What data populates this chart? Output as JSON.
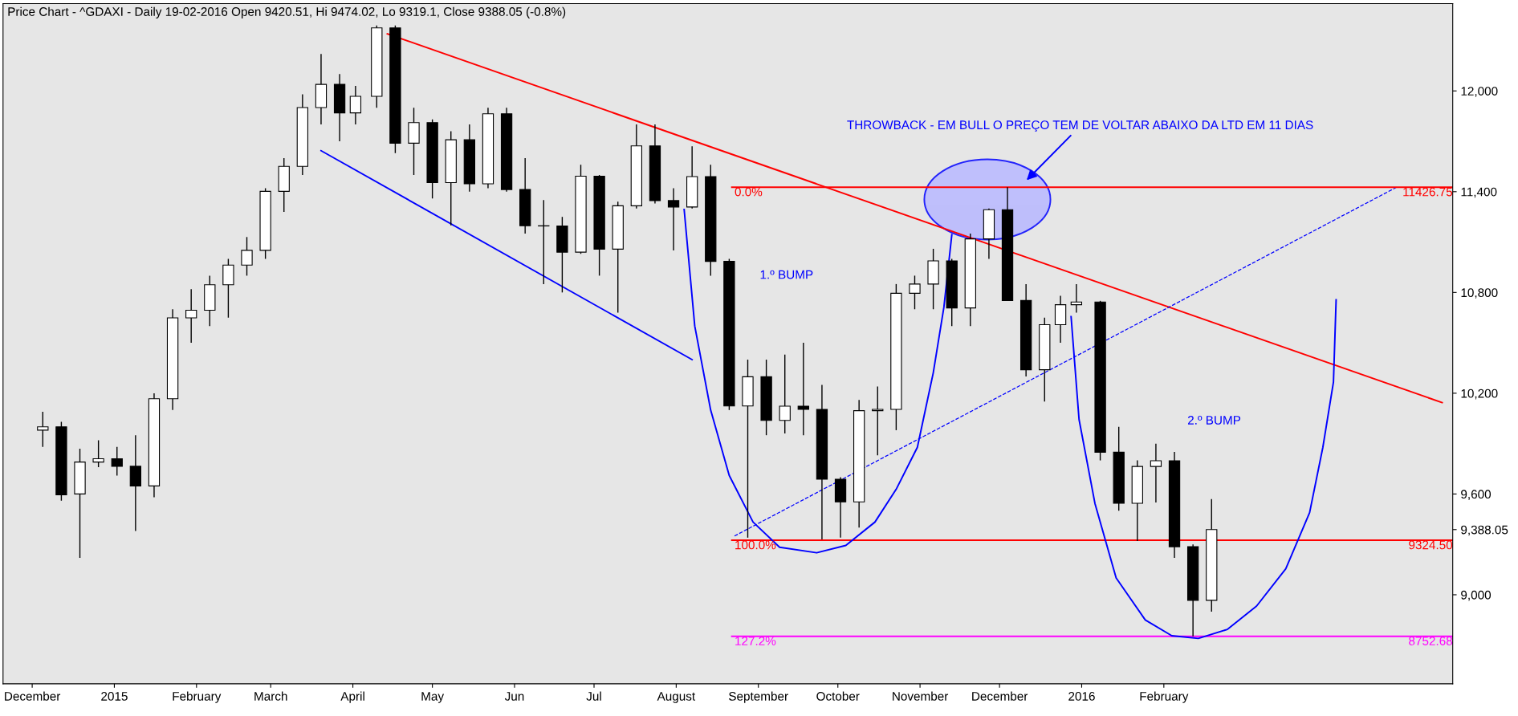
{
  "chart_data": {
    "type": "candlestick",
    "title": "Price Chart - ^GDAXI - Daily 19-02-2016 Open 9420.51, Hi 9474.02, Lo 9319.1, Close 9388.05 (-0.8%)",
    "x": [
      "2014-12-05",
      "2014-12-12",
      "2014-12-19",
      "2014-12-26",
      "2015-01-02",
      "2015-01-09",
      "2015-01-16",
      "2015-01-23",
      "2015-01-30",
      "2015-02-06",
      "2015-02-13",
      "2015-02-20",
      "2015-02-27",
      "2015-03-06",
      "2015-03-13",
      "2015-03-20",
      "2015-03-27",
      "2015-04-02",
      "2015-04-10",
      "2015-04-17",
      "2015-04-24",
      "2015-05-01",
      "2015-05-08",
      "2015-05-15",
      "2015-05-22",
      "2015-05-29",
      "2015-06-05",
      "2015-06-12",
      "2015-06-19",
      "2015-06-26",
      "2015-07-03",
      "2015-07-10",
      "2015-07-17",
      "2015-07-24",
      "2015-07-31",
      "2015-08-07",
      "2015-08-14",
      "2015-08-21",
      "2015-08-28",
      "2015-09-04",
      "2015-09-11",
      "2015-09-18",
      "2015-09-25",
      "2015-10-02",
      "2015-10-09",
      "2015-10-16",
      "2015-10-23",
      "2015-10-30",
      "2015-11-06",
      "2015-11-13",
      "2015-11-20",
      "2015-11-27",
      "2015-12-04",
      "2015-12-11",
      "2015-12-18",
      "2015-12-24",
      "2015-12-30",
      "2016-01-08",
      "2016-01-15",
      "2016-01-22",
      "2016-01-29",
      "2016-02-05",
      "2016-02-12",
      "2016-02-19"
    ],
    "ohlc": [
      [
        9980,
        10090,
        9880,
        10000
      ],
      [
        10000,
        10030,
        9560,
        9595
      ],
      [
        9600,
        9870,
        9220,
        9790
      ],
      [
        9790,
        9920,
        9760,
        9810
      ],
      [
        9810,
        9880,
        9710,
        9765
      ],
      [
        9765,
        9950,
        9380,
        9648
      ],
      [
        9648,
        10200,
        9580,
        10167
      ],
      [
        10167,
        10700,
        10100,
        10649
      ],
      [
        10649,
        10820,
        10500,
        10694
      ],
      [
        10694,
        10900,
        10600,
        10846
      ],
      [
        10846,
        11000,
        10650,
        10963
      ],
      [
        10963,
        11130,
        10900,
        11051
      ],
      [
        11051,
        11420,
        11000,
        11402
      ],
      [
        11402,
        11600,
        11280,
        11551
      ],
      [
        11551,
        11980,
        11500,
        11901
      ],
      [
        11901,
        12220,
        11800,
        12039
      ],
      [
        12039,
        12100,
        11700,
        11869
      ],
      [
        11869,
        12030,
        11800,
        11968
      ],
      [
        11968,
        12390,
        11900,
        12375
      ],
      [
        12375,
        12390,
        11630,
        11689
      ],
      [
        11689,
        11900,
        11500,
        11811
      ],
      [
        11811,
        11830,
        11360,
        11454
      ],
      [
        11454,
        11760,
        11200,
        11709
      ],
      [
        11709,
        11800,
        11400,
        11447
      ],
      [
        11447,
        11900,
        11420,
        11864
      ],
      [
        11864,
        11900,
        11400,
        11413
      ],
      [
        11413,
        11600,
        11150,
        11197
      ],
      [
        11197,
        11350,
        10850,
        11196
      ],
      [
        11196,
        11250,
        10800,
        11040
      ],
      [
        11040,
        11560,
        11030,
        11492
      ],
      [
        11492,
        11500,
        10900,
        11058
      ],
      [
        11058,
        11340,
        10680,
        11316
      ],
      [
        11316,
        11800,
        11300,
        11673
      ],
      [
        11673,
        11800,
        11330,
        11347
      ],
      [
        11347,
        11420,
        11050,
        11309
      ],
      [
        11309,
        11670,
        11300,
        11490
      ],
      [
        11490,
        11560,
        10900,
        10985
      ],
      [
        10985,
        11000,
        10100,
        10124
      ],
      [
        10124,
        10400,
        9340,
        10298
      ],
      [
        10298,
        10400,
        9950,
        10038
      ],
      [
        10038,
        10430,
        9960,
        10123
      ],
      [
        10123,
        10500,
        9950,
        10104
      ],
      [
        10104,
        10250,
        9330,
        9688
      ],
      [
        9688,
        9700,
        9340,
        9553
      ],
      [
        9553,
        10160,
        9400,
        10096
      ],
      [
        10096,
        10240,
        9830,
        10104
      ],
      [
        10104,
        10850,
        9980,
        10795
      ],
      [
        10795,
        10900,
        10700,
        10850
      ],
      [
        10850,
        11060,
        10700,
        10988
      ],
      [
        10988,
        11000,
        10600,
        10708
      ],
      [
        10708,
        11150,
        10600,
        11119
      ],
      [
        11119,
        11300,
        11000,
        11293
      ],
      [
        11293,
        11427,
        10750,
        10752
      ],
      [
        10752,
        10850,
        10300,
        10340
      ],
      [
        10340,
        10650,
        10150,
        10608
      ],
      [
        10608,
        10780,
        10500,
        10727
      ],
      [
        10727,
        10850,
        10680,
        10743
      ],
      [
        10743,
        10750,
        9800,
        9849
      ],
      [
        9849,
        10000,
        9500,
        9545
      ],
      [
        9545,
        9800,
        9320,
        9764
      ],
      [
        9764,
        9900,
        9550,
        9798
      ],
      [
        9798,
        9850,
        9220,
        9286
      ],
      [
        9286,
        9300,
        8753,
        8967
      ],
      [
        8967,
        9570,
        8900,
        9388
      ]
    ],
    "series": [
      {
        "type": "line",
        "color": "#ff0000",
        "x": [
          "2015-04-14",
          "2016-05-16"
        ],
        "values": [
          12340,
          10144
        ]
      },
      {
        "type": "line",
        "color": "#0000ff",
        "x": [
          "2015-03-20",
          "2015-08-07"
        ],
        "values": [
          11644,
          10400
        ]
      },
      {
        "type": "line",
        "color": "#0000ff",
        "line_style": "dashed",
        "x": [
          "2015-08-23",
          "2016-04-29"
        ],
        "values": [
          9350,
          11428
        ]
      },
      {
        "type": "line",
        "color": "#ff0000",
        "x": [
          "2015-08-22",
          "2016-05-20"
        ],
        "values": [
          11426.75,
          11426.75
        ]
      },
      {
        "type": "line",
        "color": "#ff0000",
        "x": [
          "2015-08-22",
          "2016-05-20"
        ],
        "values": [
          9324.5,
          9324.5
        ]
      },
      {
        "type": "line",
        "color": "#ff00ff",
        "x": [
          "2015-08-22",
          "2016-05-20"
        ],
        "values": [
          8752.68,
          8752.68
        ]
      },
      {
        "type": "line",
        "color": "#0000ff",
        "x": [
          "2015-08-04",
          "2015-08-08",
          "2015-08-14",
          "2015-08-21",
          "2015-08-30",
          "2015-09-09",
          "2015-09-23",
          "2015-10-04",
          "2015-10-15",
          "2015-10-23",
          "2015-10-31",
          "2015-11-06",
          "2015-11-10",
          "2015-11-13"
        ],
        "values": [
          11294,
          10600,
          10100,
          9711,
          9433,
          9283,
          9250,
          9294,
          9433,
          9628,
          9878,
          10322,
          10711,
          11144
        ]
      },
      {
        "type": "line",
        "color": "#0000ff",
        "x": [
          "2015-12-28",
          "2015-12-31",
          "2016-01-06",
          "2016-01-14",
          "2016-01-25",
          "2016-02-04",
          "2016-02-14",
          "2016-02-25",
          "2016-03-07",
          "2016-03-18",
          "2016-03-27",
          "2016-04-01",
          "2016-04-05",
          "2016-04-06"
        ],
        "values": [
          10656,
          10044,
          9544,
          9100,
          8850,
          8756,
          8740,
          8794,
          8933,
          9155,
          9489,
          9878,
          10267,
          10756
        ]
      }
    ],
    "annotations": [
      {
        "text": "0.0%",
        "x": "2015-08-23",
        "y": 11426.75
      },
      {
        "text": "100.0%",
        "x": "2015-08-23",
        "y": 9324.5
      },
      {
        "text": "127.2%",
        "x": "2015-08-23",
        "y": 8752.68
      },
      {
        "text": "11426.75",
        "x": "2016-05-20",
        "y": 11426.75
      },
      {
        "text": "9324.50",
        "x": "2016-05-20",
        "y": 9324.5
      },
      {
        "text": "8752.68",
        "x": "2016-05-20",
        "y": 8752.68
      },
      "1.º BUMP",
      "2.º BUMP",
      "THROWBACK - EM BULL O PREÇO TEM DE VOLTAR ABAIXO DA LTD EM 11 DIAS"
    ],
    "xlim": [
      "2014-11-20",
      "2016-05-20"
    ],
    "xticks": [
      {
        "value": "2014-12-01",
        "label": "December"
      },
      {
        "value": "2015-01-01",
        "label": "2015"
      },
      {
        "value": "2015-02-01",
        "label": "February"
      },
      {
        "value": "2015-03-01",
        "label": "March"
      },
      {
        "value": "2015-04-01",
        "label": "April"
      },
      {
        "value": "2015-05-01",
        "label": "May"
      },
      {
        "value": "2015-06-01",
        "label": "Jun"
      },
      {
        "value": "2015-07-01",
        "label": "Jul"
      },
      {
        "value": "2015-08-01",
        "label": "August"
      },
      {
        "value": "2015-09-01",
        "label": "September"
      },
      {
        "value": "2015-10-01",
        "label": "October"
      },
      {
        "value": "2015-11-01",
        "label": "November"
      },
      {
        "value": "2015-12-01",
        "label": "December"
      },
      {
        "value": "2016-01-01",
        "label": "2016"
      },
      {
        "value": "2016-02-01",
        "label": "February"
      }
    ],
    "ylim": [
      8470,
      12520
    ],
    "yticks": [
      {
        "value": 9000,
        "label": "9,000"
      },
      {
        "value": 9388.05,
        "label": "9,388.05"
      },
      {
        "value": 9600,
        "label": "9,600"
      },
      {
        "value": 10200,
        "label": "10,200"
      },
      {
        "value": 10800,
        "label": "10,800"
      },
      {
        "value": 11400,
        "label": "11,400"
      },
      {
        "value": 12000,
        "label": "12,000"
      }
    ],
    "grid": false,
    "legend": false
  }
}
